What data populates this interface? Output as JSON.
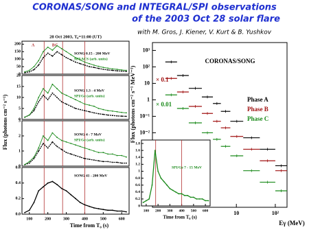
{
  "header": {
    "title": "CORONAS/SONG and INTEGRAL/SPI observations",
    "title_line2": "of the 2003 Oct 28 solar flare",
    "subtitle": "with M. Gros, J. Kiener, V. Kurt & B. Yushkov"
  },
  "chart_data": [
    {
      "type": "line",
      "title": "28 Oct 2003, T₀=11:00 (UT)",
      "ylabel": "Flux (photons cm⁻² s⁻¹)",
      "x": [
        75,
        100,
        125,
        150,
        175,
        200,
        225,
        250,
        275,
        300,
        325,
        350,
        375,
        400,
        425,
        450,
        475,
        500,
        525,
        550,
        575,
        600,
        625
      ],
      "xlim": [
        60,
        640
      ],
      "ylim": [
        0,
        220
      ],
      "yticks": [
        0,
        50,
        100,
        150,
        200
      ],
      "phase_bounds": [
        180,
        280,
        400
      ],
      "phase_labels": [
        "A",
        "B",
        "C"
      ],
      "series": [
        {
          "name": "SONG 0.15 - 200 MeV",
          "color": "#000000",
          "values": [
            10,
            15,
            30,
            60,
            110,
            140,
            120,
            150,
            130,
            110,
            95,
            80,
            70,
            60,
            50,
            45,
            38,
            32,
            28,
            25,
            22,
            20,
            18
          ]
        },
        {
          "name": "SPI/ACS (arb. units)",
          "color": "#1a8a1a",
          "values": [
            15,
            25,
            50,
            90,
            150,
            180,
            160,
            190,
            170,
            150,
            130,
            110,
            95,
            80,
            70,
            60,
            52,
            45,
            40,
            35,
            32,
            28,
            25
          ]
        }
      ]
    },
    {
      "type": "line",
      "x": [
        75,
        100,
        125,
        150,
        175,
        200,
        225,
        250,
        275,
        300,
        325,
        350,
        375,
        400,
        425,
        450,
        475,
        500,
        525,
        550,
        575,
        600,
        625
      ],
      "xlim": [
        60,
        640
      ],
      "ylim": [
        0,
        20
      ],
      "yticks": [
        0,
        5,
        10,
        15,
        20
      ],
      "phase_bounds": [
        180,
        280,
        400
      ],
      "series": [
        {
          "name": "SONG 1.3 - 4 MeV",
          "color": "#000000",
          "values": [
            1,
            2,
            4,
            8,
            11,
            9,
            12,
            10,
            8,
            7,
            6,
            5,
            4.5,
            4,
            3.5,
            3,
            2.6,
            2.3,
            2,
            1.8,
            1.6,
            1.5,
            1.4
          ]
        },
        {
          "name": "SPI/Ge (arb. units)",
          "color": "#1a8a1a",
          "values": [
            1,
            2,
            5,
            10,
            14,
            12,
            16,
            14,
            12,
            11,
            10,
            9,
            8,
            7,
            6.5,
            6,
            5,
            4.5,
            4,
            3.8,
            3.5,
            3.2,
            3
          ]
        }
      ]
    },
    {
      "type": "line",
      "x": [
        75,
        100,
        125,
        150,
        175,
        200,
        225,
        250,
        275,
        300,
        325,
        350,
        375,
        400,
        425,
        450,
        475,
        500,
        525,
        550,
        575,
        600,
        625
      ],
      "xlim": [
        60,
        640
      ],
      "ylim": [
        0,
        3
      ],
      "yticks": [
        0,
        1,
        2,
        3
      ],
      "phase_bounds": [
        180,
        280,
        400
      ],
      "series": [
        {
          "name": "SONG 4 - 7 MeV",
          "color": "#000000",
          "values": [
            0.1,
            0.2,
            0.5,
            1,
            1.5,
            1.2,
            1.6,
            1.3,
            1.1,
            0.9,
            0.8,
            0.7,
            0.6,
            0.5,
            0.45,
            0.4,
            0.35,
            0.3,
            0.3,
            0.25,
            0.25,
            0.2,
            0.2
          ]
        },
        {
          "name": "SPI/Ge (arb. units)",
          "color": "#1a8a1a",
          "values": [
            0.1,
            0.3,
            0.6,
            1.2,
            2,
            1.7,
            2.2,
            1.9,
            1.7,
            1.6,
            1.5,
            1.4,
            1.3,
            1.2,
            1.1,
            1,
            0.9,
            0.9,
            0.8,
            0.8,
            0.7,
            0.7,
            0.6
          ]
        }
      ]
    },
    {
      "type": "line",
      "xlabel": "Time from T₀ (s)",
      "x": [
        75,
        100,
        125,
        150,
        175,
        200,
        225,
        250,
        275,
        300,
        325,
        350,
        375,
        400,
        425,
        450,
        475,
        500,
        525,
        550,
        575,
        600,
        625
      ],
      "xlim": [
        60,
        640
      ],
      "xticks": [
        100,
        200,
        300,
        400,
        500,
        600
      ],
      "ylim": [
        0,
        0.6
      ],
      "yticks": [
        {
          "value": 0,
          "label": "0.0"
        },
        0.2,
        0.4,
        0.6
      ],
      "phase_bounds": [
        180,
        280,
        400
      ],
      "series": [
        {
          "name": "SONG 41 - 200 MeV",
          "color": "#000000",
          "values": [
            0.02,
            0.05,
            0.15,
            0.3,
            0.35,
            0.4,
            0.42,
            0.38,
            0.33,
            0.3,
            0.25,
            0.2,
            0.15,
            0.12,
            0.1,
            0.08,
            0.07,
            0.06,
            0.05,
            0.05,
            0.04,
            0.04,
            0.03
          ]
        }
      ]
    },
    {
      "type": "errorbar",
      "title": "CORONAS/SONG",
      "xlabel": "Eγ (MeV)",
      "ylabel": "Flux (photons cm⁻² s⁻¹ MeV⁻¹)",
      "log_x": true,
      "log_y": true,
      "xlim": [
        0.07,
        200
      ],
      "ylim": [
        3e-07,
        3000
      ],
      "xticks": [
        10,
        {
          "value": 100,
          "label": "10²"
        }
      ],
      "yticks": [
        {
          "value": 1000,
          "label": "10³"
        },
        {
          "value": 100,
          "label": "10²"
        },
        10,
        1,
        {
          "value": 0.1,
          "label": "10⁻¹"
        },
        {
          "value": 0.01,
          "label": "10⁻²"
        }
      ],
      "annotations": [
        "× 0.1",
        "× 0.01"
      ],
      "x_low": [
        0.15,
        0.3,
        0.6,
        1.3,
        2.5,
        4,
        7,
        15,
        40,
        100
      ],
      "x_high": [
        0.3,
        0.6,
        1.3,
        2.5,
        4,
        7,
        15,
        40,
        100,
        200
      ],
      "series": [
        {
          "name": "Phase A",
          "color": "#000000",
          "values": [
            200,
            30,
            5,
            1.5,
            0.6,
            0.2,
            0.05,
            0.005,
            0.001,
            0.0001
          ]
        },
        {
          "name": "Phase B",
          "color": "#a01010",
          "values": [
            20,
            3,
            0.4,
            0.15,
            0.05,
            0.02,
            0.006,
            0.001,
            0.0002,
            5e-05
          ]
        },
        {
          "name": "Phase C",
          "color": "#1a8a1a",
          "values": [
            2,
            0.3,
            0.04,
            0.01,
            0.004,
            0.0015,
            0.0004,
            5e-05,
            1e-05,
            3e-06
          ]
        }
      ]
    },
    {
      "type": "line",
      "xlabel": "Time from T₀ (s)",
      "x": [
        75,
        100,
        125,
        150,
        175,
        200,
        225,
        250,
        275,
        300,
        325,
        350,
        375,
        400,
        425,
        450,
        475,
        500,
        525,
        550,
        575,
        600,
        625
      ],
      "xlim": [
        60,
        640
      ],
      "xticks": [
        100,
        200,
        300,
        400,
        500,
        600
      ],
      "ylim": [
        0,
        1.9
      ],
      "yticks": [
        0,
        0.2,
        0.4,
        0.6,
        0.8,
        1,
        1.2,
        1.4,
        1.6,
        1.8
      ],
      "phase_bounds": [
        180,
        400
      ],
      "series": [
        {
          "name": "SPI/Ge 7 - 15 MeV",
          "color": "#1a8a1a",
          "values": [
            0.1,
            0.15,
            0.2,
            0.6,
            1.6,
            1.0,
            0.8,
            0.7,
            0.6,
            0.5,
            0.45,
            0.4,
            0.35,
            0.35,
            0.3,
            0.3,
            0.25,
            0.25,
            0.2,
            0.2,
            0.2,
            0.15,
            0.15
          ]
        }
      ]
    }
  ]
}
